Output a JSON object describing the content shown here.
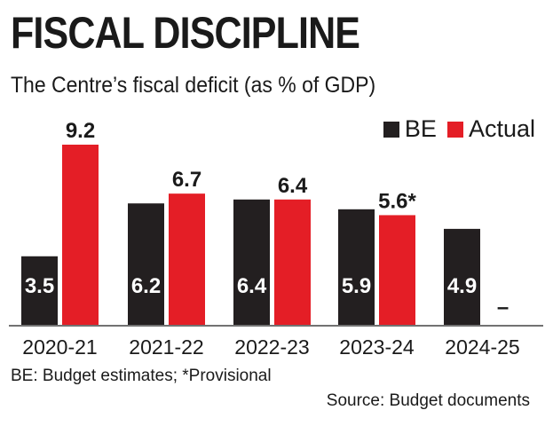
{
  "title": "FISCAL DISCIPLINE",
  "subtitle": "The Centre’s fiscal deficit (as % of GDP)",
  "legend": [
    {
      "label": "BE",
      "color": "#231f20"
    },
    {
      "label": "Actual",
      "color": "#e41e26"
    }
  ],
  "footnote": "BE: Budget estimates; *Provisional",
  "source": "Source: Budget documents",
  "chart_data": {
    "type": "bar",
    "title": "FISCAL DISCIPLINE",
    "subtitle": "The Centre’s fiscal deficit (as % of GDP)",
    "categories": [
      "2020-21",
      "2021-22",
      "2022-23",
      "2023-24",
      "2024-25"
    ],
    "series": [
      {
        "name": "BE",
        "color": "#231f20",
        "values": [
          3.5,
          6.2,
          6.4,
          5.9,
          4.9
        ],
        "labels": [
          "3.5",
          "6.2",
          "6.4",
          "5.9",
          "4.9"
        ]
      },
      {
        "name": "Actual",
        "color": "#e41e26",
        "values": [
          9.2,
          6.7,
          6.4,
          5.6,
          null
        ],
        "labels": [
          "9.2",
          "6.7",
          "6.4",
          "5.6*",
          "–"
        ]
      }
    ],
    "xlabel": "",
    "ylabel": "",
    "ylim": [
      0,
      9.2
    ],
    "grid": false,
    "legend_position": "top-right"
  }
}
